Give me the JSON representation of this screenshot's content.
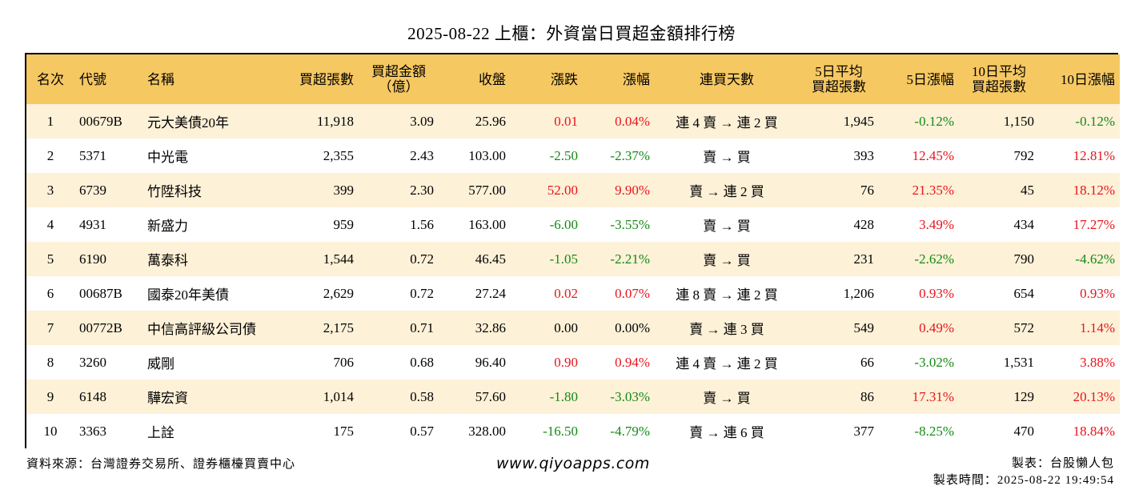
{
  "title": "2025-08-22 上櫃：外資當日買超金額排行榜",
  "headers": {
    "rank": "名次",
    "code": "代號",
    "name": "名稱",
    "buy_lots": "買超張數",
    "buy_amount_1": "買超金額",
    "buy_amount_2": "（億）",
    "close": "收盤",
    "change": "漲跌",
    "pct": "漲幅",
    "days": "連買天數",
    "avg5_1": "5日平均",
    "avg5_2": "買超張數",
    "pct5": "5日漲幅",
    "avg10_1": "10日平均",
    "avg10_2": "買超張數",
    "pct10": "10日漲幅"
  },
  "rows": [
    {
      "rank": "1",
      "code": "00679B",
      "name": "元大美債20年",
      "lots": "11,918",
      "amount": "3.09",
      "close": "25.96",
      "change": "0.01",
      "change_color": "red",
      "pct": "0.04%",
      "pct_color": "red",
      "days": "連 4 賣 → 連 2 買",
      "avg5": "1,945",
      "pct5": "-0.12%",
      "pct5_color": "green",
      "avg10": "1,150",
      "pct10": "-0.12%",
      "pct10_color": "green"
    },
    {
      "rank": "2",
      "code": "5371",
      "name": "中光電",
      "lots": "2,355",
      "amount": "2.43",
      "close": "103.00",
      "change": "-2.50",
      "change_color": "green",
      "pct": "-2.37%",
      "pct_color": "green",
      "days": "賣 → 買",
      "avg5": "393",
      "pct5": "12.45%",
      "pct5_color": "red",
      "avg10": "792",
      "pct10": "12.81%",
      "pct10_color": "red"
    },
    {
      "rank": "3",
      "code": "6739",
      "name": "竹陞科技",
      "lots": "399",
      "amount": "2.30",
      "close": "577.00",
      "change": "52.00",
      "change_color": "red",
      "pct": "9.90%",
      "pct_color": "red",
      "days": "賣 → 連 2 買",
      "avg5": "76",
      "pct5": "21.35%",
      "pct5_color": "red",
      "avg10": "45",
      "pct10": "18.12%",
      "pct10_color": "red"
    },
    {
      "rank": "4",
      "code": "4931",
      "name": "新盛力",
      "lots": "959",
      "amount": "1.56",
      "close": "163.00",
      "change": "-6.00",
      "change_color": "green",
      "pct": "-3.55%",
      "pct_color": "green",
      "days": "賣 → 買",
      "avg5": "428",
      "pct5": "3.49%",
      "pct5_color": "red",
      "avg10": "434",
      "pct10": "17.27%",
      "pct10_color": "red"
    },
    {
      "rank": "5",
      "code": "6190",
      "name": "萬泰科",
      "lots": "1,544",
      "amount": "0.72",
      "close": "46.45",
      "change": "-1.05",
      "change_color": "green",
      "pct": "-2.21%",
      "pct_color": "green",
      "days": "賣 → 買",
      "avg5": "231",
      "pct5": "-2.62%",
      "pct5_color": "green",
      "avg10": "790",
      "pct10": "-4.62%",
      "pct10_color": "green"
    },
    {
      "rank": "6",
      "code": "00687B",
      "name": "國泰20年美債",
      "lots": "2,629",
      "amount": "0.72",
      "close": "27.24",
      "change": "0.02",
      "change_color": "red",
      "pct": "0.07%",
      "pct_color": "red",
      "days": "連 8 賣 → 連 2 買",
      "avg5": "1,206",
      "pct5": "0.93%",
      "pct5_color": "red",
      "avg10": "654",
      "pct10": "0.93%",
      "pct10_color": "red"
    },
    {
      "rank": "7",
      "code": "00772B",
      "name": "中信高評級公司債",
      "lots": "2,175",
      "amount": "0.71",
      "close": "32.86",
      "change": "0.00",
      "change_color": "black",
      "pct": "0.00%",
      "pct_color": "black",
      "days": "賣 → 連 3 買",
      "avg5": "549",
      "pct5": "0.49%",
      "pct5_color": "red",
      "avg10": "572",
      "pct10": "1.14%",
      "pct10_color": "red"
    },
    {
      "rank": "8",
      "code": "3260",
      "name": "威剛",
      "lots": "706",
      "amount": "0.68",
      "close": "96.40",
      "change": "0.90",
      "change_color": "red",
      "pct": "0.94%",
      "pct_color": "red",
      "days": "連 4 賣 → 連 2 買",
      "avg5": "66",
      "pct5": "-3.02%",
      "pct5_color": "green",
      "avg10": "1,531",
      "pct10": "3.88%",
      "pct10_color": "red"
    },
    {
      "rank": "9",
      "code": "6148",
      "name": "驊宏資",
      "lots": "1,014",
      "amount": "0.58",
      "close": "57.60",
      "change": "-1.80",
      "change_color": "green",
      "pct": "-3.03%",
      "pct_color": "green",
      "days": "賣 → 買",
      "avg5": "86",
      "pct5": "17.31%",
      "pct5_color": "red",
      "avg10": "129",
      "pct10": "20.13%",
      "pct10_color": "red"
    },
    {
      "rank": "10",
      "code": "3363",
      "name": "上詮",
      "lots": "175",
      "amount": "0.57",
      "close": "328.00",
      "change": "-16.50",
      "change_color": "green",
      "pct": "-4.79%",
      "pct_color": "green",
      "days": "賣 → 連 6 買",
      "avg5": "377",
      "pct5": "-8.25%",
      "pct5_color": "green",
      "avg10": "470",
      "pct10": "18.84%",
      "pct10_color": "red"
    }
  ],
  "colors": {
    "header_bg": "#f6c862",
    "row_alt_bg": "#fdf1d8",
    "up": "#e8141b",
    "down": "#148a14"
  },
  "footer": {
    "source": "資料來源：台灣證券交易所、證券櫃檯買賣中心",
    "site": "www.qiyoapps.com",
    "maker": "製表：台股懶人包",
    "made_time": "製表時間：2025-08-22 19:49:54"
  }
}
